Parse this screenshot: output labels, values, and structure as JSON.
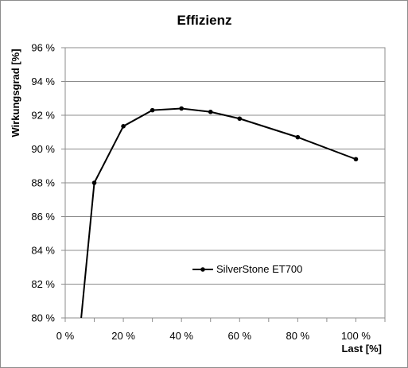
{
  "chart_data": {
    "type": "line",
    "title": "Effizienz",
    "xlabel": "Last [%]",
    "ylabel": "Wirkungsgrad [%]",
    "xlim": [
      0,
      110
    ],
    "ylim": [
      80,
      96
    ],
    "x_ticks": [
      0,
      20,
      40,
      60,
      80,
      100
    ],
    "x_tick_labels": [
      "0 %",
      "20 %",
      "40 %",
      "60 %",
      "80 %",
      "100 %"
    ],
    "y_ticks": [
      80,
      82,
      84,
      86,
      88,
      90,
      92,
      94,
      96
    ],
    "y_tick_labels": [
      "80 %",
      "82 %",
      "84 %",
      "86 %",
      "88 %",
      "90 %",
      "92 %",
      "94 %",
      "96 %"
    ],
    "grid": "horizontal",
    "legend_position": "center-right",
    "series": [
      {
        "name": "SilverStone ET700",
        "color": "#000000",
        "points": [
          {
            "x": 5.5,
            "y": 80.0
          },
          {
            "x": 10,
            "y": 88.0
          },
          {
            "x": 20,
            "y": 91.35
          },
          {
            "x": 30,
            "y": 92.3
          },
          {
            "x": 40,
            "y": 92.4
          },
          {
            "x": 50,
            "y": 92.2
          },
          {
            "x": 60,
            "y": 91.8
          },
          {
            "x": 80,
            "y": 90.7
          },
          {
            "x": 100,
            "y": 89.4
          }
        ],
        "marker_from_index": 1
      }
    ]
  }
}
